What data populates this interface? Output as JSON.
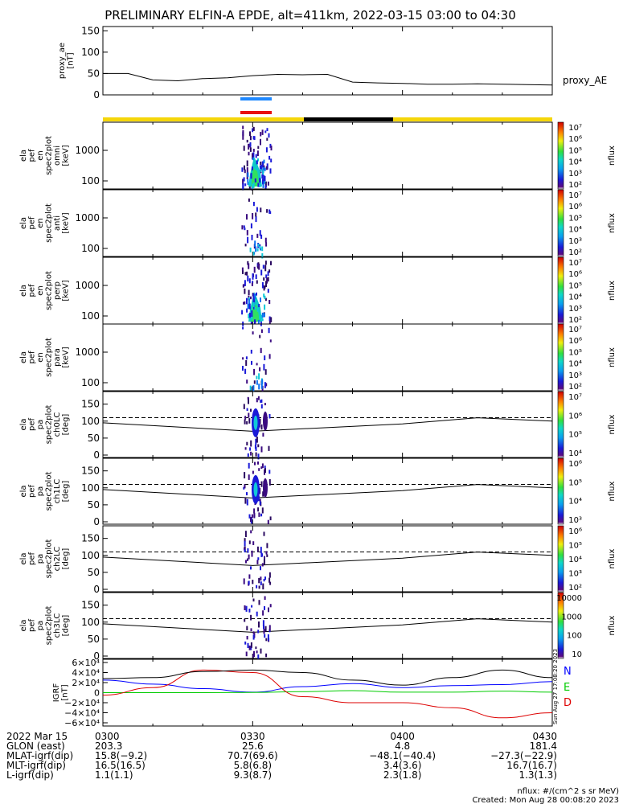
{
  "title": "PRELIMINARY ELFIN-A EPDE, alt=411km, 2022-03-15 03:00 to 04:30",
  "colors": {
    "bar_yellow": "#f5d60a",
    "bar_black": "#000000",
    "marker_blue": "#1e88ff",
    "marker_red": "#e81010",
    "N": "#0000ff",
    "E": "#00cc00",
    "D": "#dd0000"
  },
  "chart_data": {
    "type": "line",
    "time_range": [
      "03:00",
      "04:30"
    ],
    "ae_panel": {
      "ylabel": [
        "proxy_ae",
        "[nT]"
      ],
      "ticks": [
        "150",
        "100",
        "50",
        "0"
      ],
      "ylim": [
        0,
        160
      ],
      "series_label": "proxy_AE",
      "x_min": [
        0,
        5,
        10,
        15,
        20,
        25,
        30,
        35,
        40,
        45,
        50,
        55,
        60,
        65,
        70,
        75,
        80,
        85,
        90
      ],
      "values": [
        50,
        50,
        35,
        33,
        38,
        40,
        45,
        48,
        47,
        48,
        30,
        28,
        27,
        25,
        25,
        26,
        25,
        24,
        23
      ]
    },
    "markers": [
      "blue",
      "red"
    ],
    "science_zone_bar": {
      "segments": [
        "yellow",
        "black",
        "yellow"
      ]
    },
    "spectra": [
      {
        "ylabel": [
          "ela",
          "pef",
          "en",
          "spec2plot",
          "omni",
          "[keV]"
        ],
        "ticks": [
          "1000",
          "100"
        ],
        "cbar_label": "nflux",
        "cbar_ticks": [
          "10⁷",
          "10⁶",
          "10⁵",
          "10⁴",
          "10³",
          "10²"
        ]
      },
      {
        "ylabel": [
          "ela",
          "pef",
          "en",
          "spec2plot",
          "anti",
          "[keV]"
        ],
        "ticks": [
          "1000",
          "100"
        ],
        "cbar_label": "nflux",
        "cbar_ticks": [
          "10⁷",
          "10⁶",
          "10⁵",
          "10⁴",
          "10³",
          "10²"
        ]
      },
      {
        "ylabel": [
          "ela",
          "pef",
          "en",
          "spec2plot",
          "perp",
          "[keV]"
        ],
        "ticks": [
          "1000",
          "100"
        ],
        "cbar_label": "nflux",
        "cbar_ticks": [
          "10⁷",
          "10⁶",
          "10⁵",
          "10⁴",
          "10³",
          "10²"
        ]
      },
      {
        "ylabel": [
          "ela",
          "pef",
          "en",
          "spec2plot",
          "para",
          "[keV]"
        ],
        "ticks": [
          "1000",
          "100"
        ],
        "cbar_label": "nflux",
        "cbar_ticks": [
          "10⁷",
          "10⁶",
          "10⁵",
          "10⁴",
          "10³",
          "10²"
        ]
      }
    ],
    "pitch": [
      {
        "ylabel": [
          "ela",
          "pef",
          "pa",
          "spec2plot",
          "ch0LC",
          "[deg]"
        ],
        "ticks": [
          "150",
          "100",
          "50",
          "0"
        ],
        "cbar_label": "nflux",
        "cbar_ticks": [
          "10⁷",
          "10⁶",
          "10⁵",
          "10⁴"
        ]
      },
      {
        "ylabel": [
          "ela",
          "pef",
          "pa",
          "spec2plot",
          "ch1LC",
          "[deg]"
        ],
        "ticks": [
          "150",
          "100",
          "50",
          "0"
        ],
        "cbar_label": "nflux",
        "cbar_ticks": [
          "10⁶",
          "10⁵",
          "10⁴",
          "10³"
        ]
      },
      {
        "ylabel": [
          "ela",
          "pef",
          "pa",
          "spec2plot",
          "ch2LC",
          "[deg]"
        ],
        "ticks": [
          "150",
          "100",
          "50",
          "0"
        ],
        "cbar_label": "nflux",
        "cbar_ticks": [
          "10⁶",
          "10⁵",
          "10⁴",
          "10³",
          "10²"
        ]
      },
      {
        "ylabel": [
          "ela",
          "pef",
          "pa",
          "spec2plot",
          "ch3LC",
          "[deg]"
        ],
        "ticks": [
          "150",
          "100",
          "50",
          "0"
        ],
        "cbar_label": "nflux",
        "cbar_ticks": [
          "10000",
          "1000",
          "100",
          "10"
        ]
      }
    ],
    "igrf": {
      "ylabel": [
        "IGRF",
        "[nT]"
      ],
      "ticks": [
        "6×10⁴",
        "4×10⁴",
        "2×10⁴",
        "0",
        "−2×10⁴",
        "−4×10⁴",
        "−6×10⁴"
      ],
      "ylim": [
        -60000,
        60000
      ],
      "x_min": [
        0,
        10,
        20,
        30,
        40,
        50,
        60,
        70,
        80,
        90
      ],
      "series": [
        {
          "name": "N",
          "values": [
            25000,
            17000,
            8000,
            1000,
            12000,
            18000,
            10000,
            14000,
            16000,
            22000
          ]
        },
        {
          "name": "E",
          "values": [
            0,
            0,
            0,
            500,
            2000,
            4000,
            1000,
            1000,
            3000,
            1000
          ]
        },
        {
          "name": "D",
          "values": [
            -5000,
            10000,
            45000,
            40000,
            -8000,
            -20000,
            -20000,
            -30000,
            -50000,
            -40000
          ]
        },
        {
          "values": [
            28000,
            30000,
            42000,
            45000,
            40000,
            25000,
            15000,
            30000,
            45000,
            30000
          ]
        }
      ],
      "series_labels": [
        "N",
        "E",
        "D"
      ],
      "side_note": "Sun Aug 27 17:08:20 2023"
    },
    "orbit_table": {
      "rows": [
        {
          "label": "2022 Mar 15",
          "values": [
            "0300",
            "0330",
            "0400",
            "0430"
          ]
        },
        {
          "label": "GLON (east)",
          "values": [
            "203.3",
            "25.6",
            "4.8",
            "181.4"
          ]
        },
        {
          "label": "MLAT-igrf(dip)",
          "values": [
            "15.8(−9.2)",
            "70.7(69.6)",
            "−48.1(−40.4)",
            "−27.3(−22.9)"
          ]
        },
        {
          "label": "MLT-igrf(dip)",
          "values": [
            "16.5(16.5)",
            "5.8(6.8)",
            "3.4(3.6)",
            "16.7(16.7)"
          ]
        },
        {
          "label": "L-igrf(dip)",
          "values": [
            "1.1(1.1)",
            "9.3(8.7)",
            "2.3(1.8)",
            "1.3(1.3)"
          ]
        }
      ]
    }
  },
  "footer": {
    "nflux_unit": "nflux: #/(cm^2 s sr MeV)",
    "created": "Created: Mon Aug 28 00:08:20 2023"
  }
}
